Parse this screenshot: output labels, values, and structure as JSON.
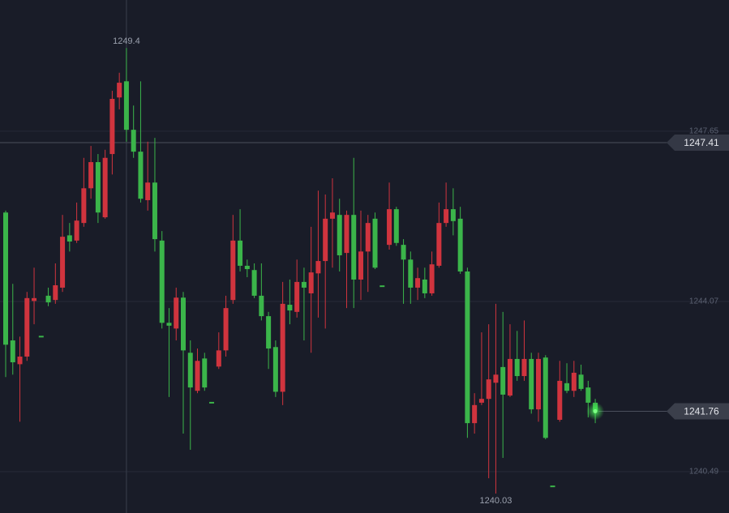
{
  "chart_data": {
    "type": "candlestick",
    "up_color": "#d0343e",
    "down_color": "#3bb54a",
    "ylim": [
      1239.62,
      1250.41
    ],
    "yticks": [
      1240.49,
      1244.07,
      1247.65
    ],
    "grid": true,
    "open": [
      1245.94,
      1243.25,
      1242.75,
      1242.91,
      1244.08,
      1243.33,
      1244.19,
      1244.1,
      1244.36,
      1245.46,
      1245.35,
      1245.72,
      1246.45,
      1247.0,
      1245.84,
      1247.17,
      1248.36,
      1248.7,
      1247.68,
      1247.22,
      1246.2,
      1246.57,
      1245.35,
      1243.62,
      1243.5,
      1244.15,
      1242.99,
      1242.19,
      1242.87,
      1241.94,
      1242.7,
      1243.04,
      1244.1,
      1245.35,
      1244.82,
      1244.73,
      1244.19,
      1243.76,
      1243.11,
      1242.17,
      1244.0,
      1243.85,
      1244.48,
      1244.24,
      1244.66,
      1244.92,
      1245.81,
      1245.89,
      1245.09,
      1245.89,
      1244.53,
      1245.12,
      1245.81,
      1244.39,
      1245.26,
      1246.01,
      1245.26,
      1244.95,
      1244.36,
      1244.53,
      1244.24,
      1244.82,
      1245.72,
      1246.01,
      1245.81,
      1244.7,
      1241.51,
      1241.94,
      1242.02,
      1242.36,
      1242.69,
      1242.09,
      1242.86,
      1242.5,
      1242.86,
      1241.8,
      1242.89,
      1240.18,
      1241.58,
      1242.35,
      1242.19,
      1242.53,
      1242.26,
      1241.94
    ],
    "high": [
      1245.98,
      1244.44,
      1243.33,
      1244.27,
      1244.78,
      1243.33,
      1244.36,
      1244.87,
      1245.89,
      1245.72,
      1246.15,
      1247.09,
      1247.34,
      1247.17,
      1247.26,
      1248.5,
      1248.88,
      1249.4,
      1248.19,
      1248.7,
      1247.43,
      1247.51,
      1245.55,
      1243.93,
      1244.36,
      1244.27,
      1243.25,
      1243.08,
      1242.99,
      1241.94,
      1243.42,
      1244.19,
      1245.89,
      1246.01,
      1244.95,
      1244.87,
      1244.87,
      1243.85,
      1243.25,
      1244.48,
      1244.53,
      1244.95,
      1244.78,
      1245.64,
      1246.4,
      1246.32,
      1246.66,
      1246.23,
      1245.98,
      1247.09,
      1245.98,
      1245.89,
      1245.94,
      1244.39,
      1246.57,
      1246.06,
      1245.38,
      1245.12,
      1244.78,
      1244.78,
      1245.12,
      1246.15,
      1246.57,
      1246.45,
      1246.06,
      1244.78,
      1242.14,
      1243.42,
      1243.59,
      1244.02,
      1243.85,
      1243.59,
      1243.45,
      1243.67,
      1242.99,
      1242.99,
      1242.94,
      1240.18,
      1242.82,
      1242.77,
      1242.82,
      1242.74,
      1242.4,
      1242.02
    ],
    "low": [
      1242.48,
      1242.53,
      1241.54,
      1242.82,
      1243.59,
      1243.33,
      1243.97,
      1244.02,
      1244.27,
      1245.12,
      1245.3,
      1245.64,
      1246.23,
      1245.72,
      1245.81,
      1246.74,
      1248.11,
      1247.43,
      1247.09,
      1246.15,
      1245.98,
      1245.12,
      1243.5,
      1242.06,
      1243.25,
      1241.29,
      1240.95,
      1242.14,
      1242.19,
      1241.94,
      1242.65,
      1242.91,
      1244.02,
      1244.7,
      1244.58,
      1244.14,
      1243.67,
      1242.65,
      1242.06,
      1241.89,
      1243.59,
      1243.73,
      1243.25,
      1242.99,
      1243.73,
      1243.5,
      1244.78,
      1244.7,
      1243.93,
      1243.93,
      1244.1,
      1244.27,
      1244.75,
      1244.39,
      1245.16,
      1245.24,
      1244.02,
      1244.02,
      1244.1,
      1244.14,
      1244.19,
      1244.78,
      1245.64,
      1245.46,
      1244.65,
      1241.2,
      1241.29,
      1241.89,
      1240.35,
      1240.03,
      1240.78,
      1242.06,
      1242.4,
      1242.4,
      1241.71,
      1241.54,
      1241.17,
      1240.18,
      1241.54,
      1242.14,
      1242.06,
      1242.19,
      1241.63,
      1241.51
    ],
    "close": [
      1243.16,
      1242.79,
      1242.91,
      1244.14,
      1244.14,
      1243.33,
      1244.05,
      1244.41,
      1245.43,
      1245.33,
      1245.77,
      1246.45,
      1247.0,
      1245.94,
      1247.09,
      1248.33,
      1248.67,
      1247.68,
      1247.22,
      1246.23,
      1246.57,
      1245.38,
      1243.62,
      1243.56,
      1244.15,
      1243.04,
      1242.26,
      1242.82,
      1242.26,
      1241.94,
      1243.04,
      1243.93,
      1245.35,
      1244.82,
      1244.75,
      1244.19,
      1243.76,
      1243.08,
      1242.17,
      1244.02,
      1243.88,
      1244.48,
      1244.36,
      1244.68,
      1244.92,
      1245.81,
      1245.94,
      1245.04,
      1245.89,
      1244.53,
      1245.12,
      1245.72,
      1244.78,
      1244.39,
      1246.01,
      1245.3,
      1244.95,
      1244.36,
      1244.56,
      1244.24,
      1244.85,
      1245.72,
      1246.01,
      1245.76,
      1244.7,
      1241.51,
      1241.89,
      1242.02,
      1242.43,
      1242.53,
      1242.11,
      1242.86,
      1242.5,
      1242.86,
      1241.8,
      1242.86,
      1241.2,
      1240.18,
      1242.4,
      1242.19,
      1242.57,
      1242.23,
      1241.94,
      1241.76
    ],
    "high_label": 1249.4,
    "low_label": 1240.03,
    "last_price": 1241.76,
    "crosshair_price": 1247.41
  }
}
